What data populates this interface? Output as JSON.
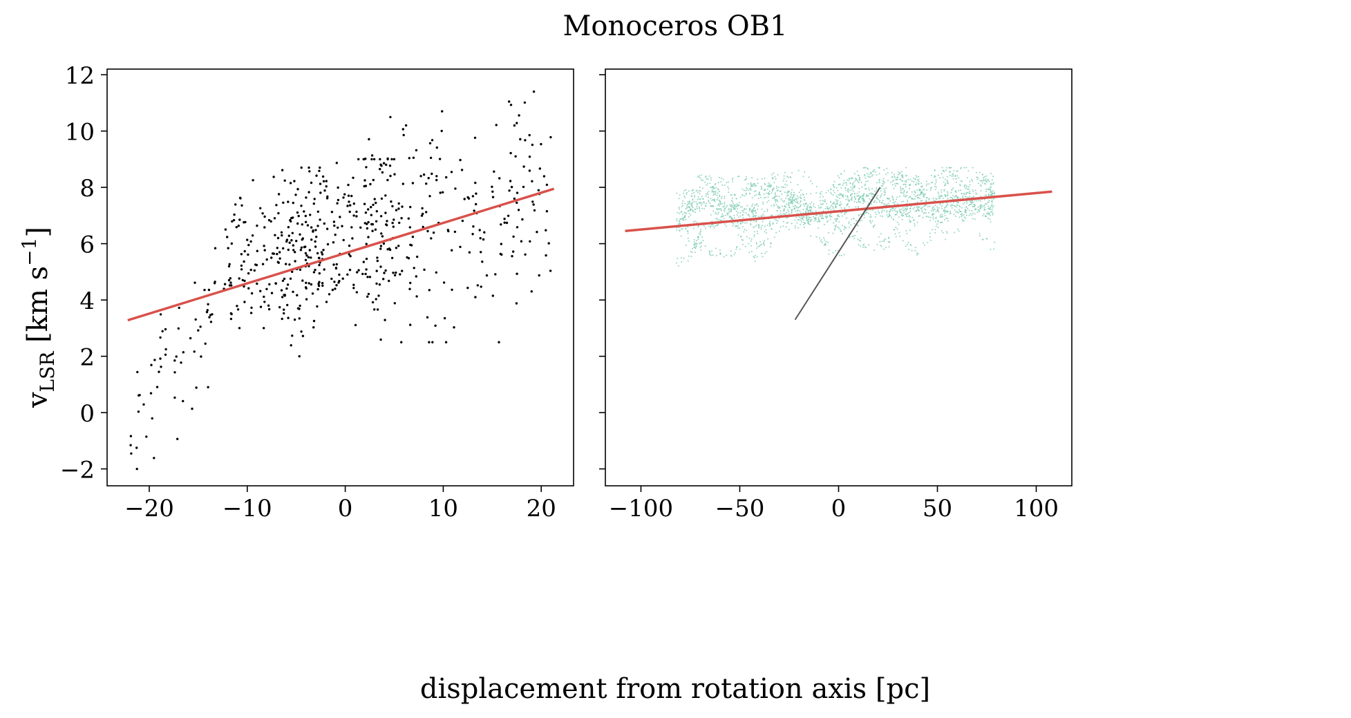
{
  "chart_data": {
    "title": "Monoceros OB1",
    "xlabel": "displacement from rotation axis [pc]",
    "ylabel": {
      "base": "v",
      "subscript": "LSR",
      "unit_open": " [km s",
      "unit_exp": "−1",
      "unit_close": "]"
    },
    "ylim": [
      -2.6,
      12.2
    ],
    "yticks": [
      -2,
      0,
      2,
      4,
      6,
      8,
      10,
      12
    ],
    "panels": [
      {
        "type": "scatter",
        "xlim": [
          -24.3,
          23.3
        ],
        "xticks": [
          -20,
          -10,
          0,
          10,
          20
        ],
        "grid": false,
        "point_color": "#000000",
        "fit_line": {
          "color": "#d9514b",
          "x": [
            -22.2,
            21.3
          ],
          "y": [
            3.28,
            7.95
          ]
        },
        "clusters": [
          {
            "x_range": [
              -22,
              -14
            ],
            "y_range": [
              -2.0,
              4.8
            ],
            "n": 50,
            "trend": [
              -0.6,
              3.4
            ]
          },
          {
            "x_range": [
              -14,
              -2
            ],
            "y_range": [
              3.0,
              8.7
            ],
            "n": 170,
            "trend": [
              4.2,
              6.8
            ]
          },
          {
            "x_range": [
              -7,
              5
            ],
            "y_range": [
              2.0,
              9.0
            ],
            "n": 200,
            "trend": [
              4.8,
              7.6
            ]
          },
          {
            "x_range": [
              2,
              21
            ],
            "y_range": [
              2.5,
              11.4
            ],
            "n": 230,
            "trend": [
              6.0,
              7.8
            ]
          }
        ]
      },
      {
        "type": "scatter",
        "xlim": [
          -118,
          118
        ],
        "xticks": [
          -100,
          -50,
          0,
          50,
          100
        ],
        "grid": false,
        "point_color": "#79c9b0",
        "fit_line": {
          "color": "#d9514b",
          "x": [
            -108,
            108
          ],
          "y": [
            6.45,
            7.85
          ]
        },
        "inset_line": {
          "color": "#555555",
          "x": [
            -22,
            21
          ],
          "y": [
            3.3,
            8.0
          ]
        },
        "band": {
          "x_range": [
            -82,
            79
          ],
          "y_range": [
            4.75,
            8.7
          ],
          "n": 2400
        }
      }
    ]
  }
}
